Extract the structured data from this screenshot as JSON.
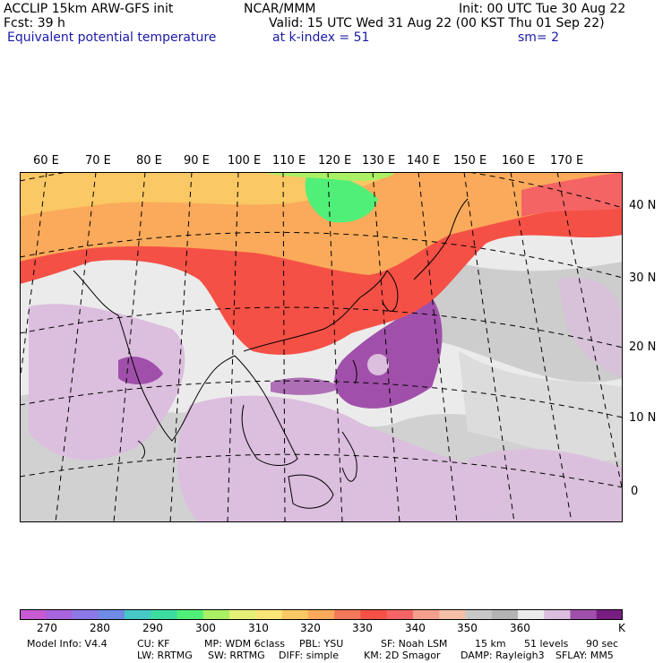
{
  "header": {
    "model": "ACCLIP 15km ARW-GFS init",
    "center": "NCAR/MMM",
    "init": "Init: 00 UTC Tue 30 Aug 22",
    "fcst": "Fcst:   39 h",
    "valid": "Valid: 15 UTC Wed 31 Aug 22 (00 KST Thu 01 Sep 22)",
    "field": "Equivalent potential temperature",
    "level": "at k-index =  51",
    "smooth": "sm= 2"
  },
  "longitude_labels": [
    "60 E",
    "70 E",
    "80 E",
    "90 E",
    "100 E",
    "110 E",
    "120 E",
    "130 E",
    "140 E",
    "150 E",
    "160 E",
    "170 E"
  ],
  "latitude_labels": [
    "40 N",
    "30 N",
    "20 N",
    "10 N",
    "0"
  ],
  "colorbar": {
    "colors": [
      "#c85ad2",
      "#a864dc",
      "#8c78e6",
      "#6e8ce6",
      "#46c8c8",
      "#3cdca0",
      "#50f078",
      "#aaf064",
      "#e6f078",
      "#fae678",
      "#fac864",
      "#faaa5a",
      "#f5785a",
      "#f55046",
      "#f56464",
      "#f5a08c",
      "#f5bea5",
      "#c8c8c8",
      "#b4b4b4",
      "#ebebeb",
      "#dcbede",
      "#a050aa",
      "#781e82"
    ],
    "tick_labels": [
      "270",
      "280",
      "290",
      "300",
      "310",
      "320",
      "330",
      "340",
      "350",
      "360"
    ],
    "unit": "K"
  },
  "footer": {
    "line1": [
      "Model Info: V4.4",
      "CU: KF",
      "MP: WDM 6class",
      "PBL: YSU",
      "SF: Noah LSM",
      "15 km",
      "51 levels",
      "90 sec"
    ],
    "line2": [
      "LW: RRTMG",
      "SW: RRTMG",
      "DIFF: simple",
      "KM: 2D Smagor",
      "DAMP: Rayleigh3",
      "SFLAY: MM5"
    ]
  }
}
